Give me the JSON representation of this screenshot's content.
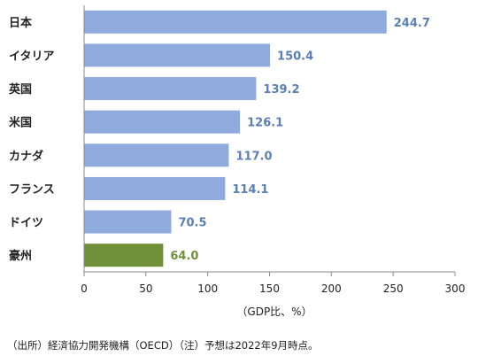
{
  "chart_data": {
    "type": "bar",
    "orientation": "horizontal",
    "categories": [
      "日本",
      "イタリア",
      "英国",
      "米国",
      "カナダ",
      "フランス",
      "ドイツ",
      "豪州"
    ],
    "values": [
      244.7,
      150.4,
      139.2,
      126.1,
      117.0,
      114.1,
      70.5,
      64.0
    ],
    "value_labels": [
      "244.7",
      "150.4",
      "139.2",
      "126.1",
      "117.0",
      "114.1",
      "70.5",
      "64.0"
    ],
    "xlim": [
      0,
      300
    ],
    "xticks": [
      "0",
      "50",
      "100",
      "150",
      "200",
      "250",
      "300"
    ],
    "xlabel": "（GDP比、%）",
    "grid": false,
    "colors": {
      "default_bar": "#8faadc",
      "highlight_bar": "#70913a",
      "default_label": "#5b7fb5",
      "highlight_label": "#70913a"
    },
    "highlight_index": 7
  },
  "footer": {
    "source": "（出所）経済協力開発機構（OECD）（注）予想は2022年9月時点。"
  }
}
